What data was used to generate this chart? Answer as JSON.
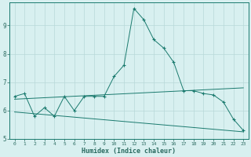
{
  "xlabel": "Humidex (Indice chaleur)",
  "x": [
    0,
    1,
    2,
    3,
    4,
    5,
    6,
    7,
    8,
    9,
    10,
    11,
    12,
    13,
    14,
    15,
    16,
    17,
    18,
    19,
    20,
    21,
    22,
    23
  ],
  "line1": [
    6.5,
    6.6,
    5.8,
    6.1,
    5.8,
    6.5,
    6.0,
    6.5,
    6.5,
    6.5,
    7.2,
    7.6,
    9.6,
    9.2,
    8.5,
    8.2,
    7.7,
    6.7,
    6.7,
    6.6,
    6.55,
    6.3,
    5.7,
    5.3
  ],
  "line_color": "#1a7a6e",
  "bg_color": "#d8f0f0",
  "grid_color": "#b8d8d8",
  "axis_color": "#1a7a6e",
  "tick_color": "#2a6a60",
  "ylim": [
    5.0,
    9.8
  ],
  "xlim": [
    -0.5,
    23.5
  ],
  "yticks": [
    5,
    6,
    7,
    8,
    9
  ],
  "xticks": [
    0,
    1,
    2,
    3,
    4,
    5,
    6,
    7,
    8,
    9,
    10,
    11,
    12,
    13,
    14,
    15,
    16,
    17,
    18,
    19,
    20,
    21,
    22,
    23
  ],
  "trend1_x": [
    0,
    23
  ],
  "trend1_y": [
    6.4,
    6.8
  ],
  "trend2_x": [
    0,
    23
  ],
  "trend2_y": [
    5.95,
    5.25
  ],
  "marker": "+"
}
